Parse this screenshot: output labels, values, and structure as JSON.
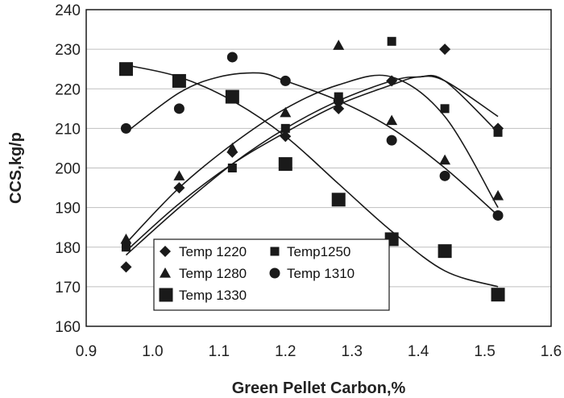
{
  "chart_data": {
    "type": "scatter",
    "title": "",
    "xlabel": "Green Pellet Carbon,%",
    "ylabel": "CCS,kg/p",
    "xlim": [
      0.9,
      1.6
    ],
    "ylim": [
      160,
      240
    ],
    "xticks": [
      0.9,
      1.0,
      1.1,
      1.2,
      1.3,
      1.4,
      1.5,
      1.6
    ],
    "yticks": [
      160,
      170,
      180,
      190,
      200,
      210,
      220,
      230,
      240
    ],
    "xtick_labels": [
      "0.9",
      "1.0",
      "1.1",
      "1.2",
      "1.3",
      "1.4",
      "1.5",
      "1.6"
    ],
    "ytick_labels": [
      "160",
      "170",
      "180",
      "190",
      "200",
      "210",
      "220",
      "230",
      "240"
    ],
    "grid": "horizontal",
    "legend_position": "bottom-left",
    "colors": {
      "marker": "#1a1a1a",
      "line": "#1a1a1a",
      "grid": "#bfbfbf"
    },
    "series": [
      {
        "name": "Temp 1220",
        "marker": "diamond",
        "x": [
          0.96,
          1.04,
          1.12,
          1.2,
          1.28,
          1.36,
          1.44,
          1.52
        ],
        "y": [
          175,
          195,
          204,
          208,
          215,
          222,
          230,
          210
        ],
        "fit": [
          [
            0.96,
            179
          ],
          [
            1.04,
            191
          ],
          [
            1.12,
            201
          ],
          [
            1.2,
            209
          ],
          [
            1.28,
            216
          ],
          [
            1.36,
            221
          ],
          [
            1.4,
            223
          ],
          [
            1.44,
            222
          ],
          [
            1.52,
            213
          ]
        ]
      },
      {
        "name": "Temp1250",
        "marker": "square-small",
        "x": [
          0.96,
          1.12,
          1.2,
          1.28,
          1.36,
          1.44,
          1.52
        ],
        "y": [
          180,
          200,
          210,
          218,
          232,
          215,
          209
        ],
        "fit": [
          [
            0.96,
            178
          ],
          [
            1.04,
            190
          ],
          [
            1.12,
            201
          ],
          [
            1.2,
            210
          ],
          [
            1.28,
            217
          ],
          [
            1.36,
            222
          ],
          [
            1.4,
            223
          ],
          [
            1.44,
            222
          ],
          [
            1.52,
            209
          ]
        ]
      },
      {
        "name": "Temp 1280",
        "marker": "triangle",
        "x": [
          0.96,
          1.04,
          1.12,
          1.2,
          1.28,
          1.36,
          1.44,
          1.52
        ],
        "y": [
          182,
          198,
          205,
          214,
          231,
          212,
          202,
          193
        ],
        "fit": [
          [
            0.96,
            181
          ],
          [
            1.04,
            195
          ],
          [
            1.12,
            206
          ],
          [
            1.2,
            215
          ],
          [
            1.28,
            221
          ],
          [
            1.36,
            223
          ],
          [
            1.44,
            213
          ],
          [
            1.52,
            190
          ]
        ]
      },
      {
        "name": "Temp 1310",
        "marker": "circle",
        "x": [
          0.96,
          1.04,
          1.12,
          1.2,
          1.28,
          1.36,
          1.44,
          1.52
        ],
        "y": [
          210,
          215,
          228,
          222,
          217,
          207,
          198,
          188
        ],
        "fit": [
          [
            0.96,
            209
          ],
          [
            1.04,
            219
          ],
          [
            1.1,
            223
          ],
          [
            1.16,
            224
          ],
          [
            1.2,
            222
          ],
          [
            1.28,
            217
          ],
          [
            1.36,
            210
          ],
          [
            1.44,
            200
          ],
          [
            1.52,
            188
          ]
        ]
      },
      {
        "name": "Temp 1330",
        "marker": "square-large",
        "x": [
          0.96,
          1.04,
          1.12,
          1.2,
          1.28,
          1.36,
          1.44,
          1.52
        ],
        "y": [
          225,
          222,
          218,
          201,
          192,
          182,
          179,
          168
        ],
        "fit": [
          [
            0.96,
            226
          ],
          [
            1.04,
            223
          ],
          [
            1.12,
            217
          ],
          [
            1.2,
            208
          ],
          [
            1.28,
            196
          ],
          [
            1.36,
            184
          ],
          [
            1.44,
            174
          ],
          [
            1.52,
            170
          ]
        ]
      }
    ]
  }
}
